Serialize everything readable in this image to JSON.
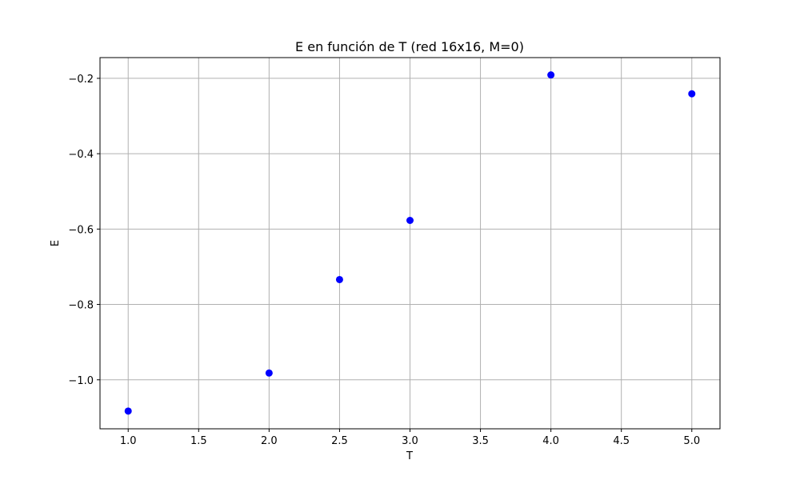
{
  "chart_data": {
    "type": "scatter",
    "title": "E en función de T (red 16x16, M=0)",
    "xlabel": "T",
    "ylabel": "E",
    "x": [
      1.0,
      2.0,
      2.5,
      3.0,
      4.0,
      5.0
    ],
    "y": [
      -1.083,
      -0.982,
      -0.734,
      -0.577,
      -0.191,
      -0.241
    ],
    "xlim": [
      0.8,
      5.2
    ],
    "ylim": [
      -1.13,
      -0.145
    ],
    "xticks": [
      1.0,
      1.5,
      2.0,
      2.5,
      3.0,
      3.5,
      4.0,
      4.5,
      5.0
    ],
    "xtick_labels": [
      "1.0",
      "1.5",
      "2.0",
      "2.5",
      "3.0",
      "3.5",
      "4.0",
      "4.5",
      "5.0"
    ],
    "yticks": [
      -1.0,
      -0.8,
      -0.6,
      -0.4,
      -0.2
    ],
    "ytick_labels": [
      "−1.0",
      "−0.8",
      "−0.6",
      "−0.4",
      "−0.2"
    ],
    "grid": true,
    "marker_color": "#0000ff"
  }
}
